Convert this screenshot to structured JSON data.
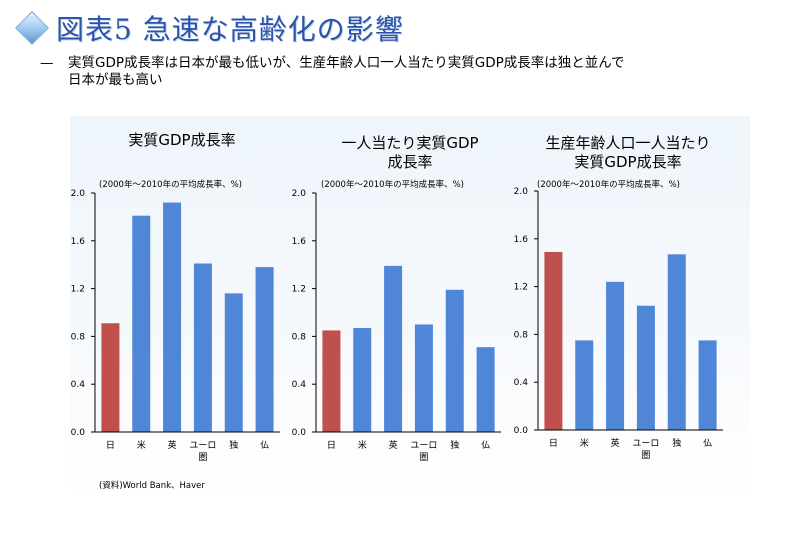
{
  "header": {
    "title": "図表5  急速な高齢化の影響",
    "icon": "diamond-icon"
  },
  "subtitle": {
    "dash": "—",
    "line1": "実質GDP成長率は日本が最も低いが、生産年齢人口一人当たり実質GDP成長率は独と並んで",
    "line2": "日本が最も高い"
  },
  "source": "(資料)World Bank、Haver",
  "colors": {
    "japan": "#c0504d",
    "others": "#4f86d8"
  },
  "chart_data": [
    {
      "type": "bar",
      "title_lines": [
        "実質GDP成長率"
      ],
      "unit": "(2000年～2010年の平均成長率、%)",
      "categories": [
        "日",
        "米",
        "英",
        "ユーロ圏",
        "独",
        "仏"
      ],
      "category_labels": [
        [
          "日"
        ],
        [
          "米"
        ],
        [
          "英"
        ],
        [
          "ユーロ",
          "圏"
        ],
        [
          "独"
        ],
        [
          "仏"
        ]
      ],
      "values": [
        0.91,
        1.81,
        1.92,
        1.41,
        1.16,
        1.38
      ],
      "ylim": [
        0,
        2.0
      ],
      "yticks": [
        "0.0",
        "0.4",
        "0.8",
        "1.2",
        "1.6",
        "2.0"
      ],
      "grid": false
    },
    {
      "type": "bar",
      "title_lines": [
        "一人当たり実質GDP",
        "成長率"
      ],
      "unit": "(2000年～2010年の平均成長率、%)",
      "categories": [
        "日",
        "米",
        "英",
        "ユーロ圏",
        "独",
        "仏"
      ],
      "category_labels": [
        [
          "日"
        ],
        [
          "米"
        ],
        [
          "英"
        ],
        [
          "ユーロ",
          "圏"
        ],
        [
          "独"
        ],
        [
          "仏"
        ]
      ],
      "values": [
        0.85,
        0.87,
        1.39,
        0.9,
        1.19,
        0.71
      ],
      "ylim": [
        0,
        2.0
      ],
      "yticks": [
        "0.0",
        "0.4",
        "0.8",
        "1.2",
        "1.6",
        "2.0"
      ],
      "grid": false
    },
    {
      "type": "bar",
      "title_lines": [
        "生産年齢人口一人当たり",
        "実質GDP成長率"
      ],
      "unit": "(2000年～2010年の平均成長率、%)",
      "categories": [
        "日",
        "米",
        "英",
        "ユーロ圏",
        "独",
        "仏"
      ],
      "category_labels": [
        [
          "日"
        ],
        [
          "米"
        ],
        [
          "英"
        ],
        [
          "ユーロ",
          "圏"
        ],
        [
          "独"
        ],
        [
          "仏"
        ]
      ],
      "values": [
        1.49,
        0.75,
        1.24,
        1.04,
        1.47,
        0.75
      ],
      "ylim": [
        0,
        2.0
      ],
      "yticks": [
        "0.0",
        "0.4",
        "0.8",
        "1.2",
        "1.6",
        "2.0"
      ],
      "grid": false
    }
  ]
}
